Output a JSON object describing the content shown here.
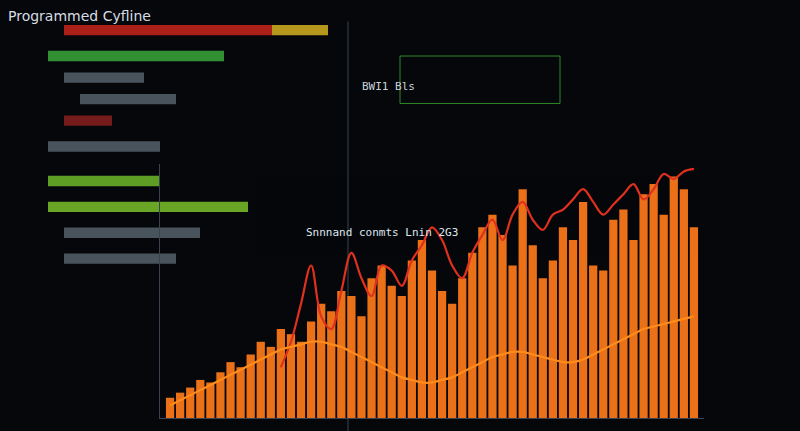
{
  "chart_data": {
    "type": "bar",
    "title": "Programmed Cyfline",
    "annotations": [
      "BWI1 Bls",
      "Snnnand conmts Lnin 2G3"
    ],
    "x": [
      1,
      2,
      3,
      4,
      5,
      6,
      7,
      8,
      9,
      10,
      11,
      12,
      13,
      14,
      15,
      16,
      17,
      18,
      19,
      20,
      21,
      22,
      23,
      24,
      25,
      26,
      27,
      28,
      29,
      30,
      31,
      32,
      33,
      34,
      35,
      36,
      37,
      38,
      39,
      40,
      41,
      42,
      43,
      44,
      45,
      46,
      47,
      48,
      49,
      50,
      51,
      52,
      53
    ],
    "xlim": [
      0,
      54
    ],
    "ylim": [
      0,
      100
    ],
    "tick_labels": false,
    "grid": false,
    "series": [
      {
        "type": "bar",
        "color": "#ff7a1a",
        "values": [
          8,
          10,
          12,
          15,
          14,
          18,
          22,
          20,
          25,
          30,
          28,
          35,
          33,
          30,
          38,
          45,
          42,
          50,
          48,
          40,
          55,
          60,
          52,
          48,
          62,
          70,
          58,
          50,
          45,
          55,
          65,
          75,
          80,
          72,
          60,
          90,
          68,
          55,
          62,
          75,
          70,
          85,
          60,
          58,
          78,
          82,
          70,
          88,
          92,
          80,
          95,
          90,
          75
        ]
      },
      {
        "type": "line",
        "color": "#e0301e",
        "line_style": "solid",
        "values": [
          null,
          null,
          null,
          null,
          null,
          null,
          null,
          null,
          null,
          null,
          null,
          20,
          30,
          45,
          60,
          40,
          35,
          50,
          65,
          55,
          48,
          60,
          58,
          52,
          62,
          68,
          75,
          70,
          60,
          55,
          65,
          72,
          78,
          70,
          80,
          85,
          78,
          74,
          80,
          82,
          86,
          90,
          85,
          80,
          84,
          88,
          92,
          86,
          90,
          96,
          94,
          97,
          98
        ]
      },
      {
        "type": "line",
        "color": "#ff8c1a",
        "line_style": "solid",
        "values": [
          5,
          7,
          9,
          11,
          13,
          15,
          17,
          19,
          21,
          23,
          25,
          27,
          28,
          29,
          30,
          30,
          29,
          28,
          26,
          24,
          22,
          20,
          18,
          16,
          15,
          14,
          14,
          15,
          16,
          18,
          20,
          22,
          24,
          25,
          26,
          26,
          25,
          24,
          23,
          22,
          22,
          23,
          25,
          27,
          29,
          31,
          33,
          35,
          36,
          37,
          38,
          39,
          40
        ]
      }
    ]
  }
}
